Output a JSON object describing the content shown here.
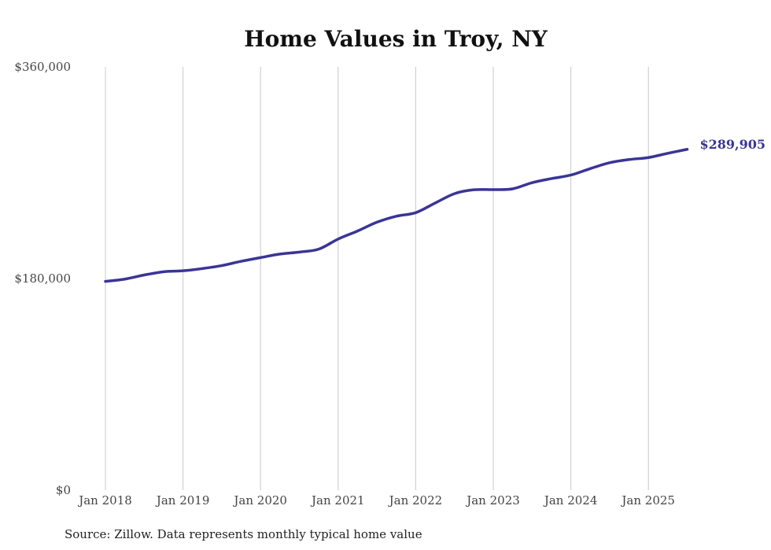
{
  "chart_data": {
    "type": "line",
    "title": "Home Values in Troy, NY",
    "xlabel": "",
    "ylabel": "",
    "source": "Source: Zillow. Data represents monthly typical home value",
    "ylim": [
      0,
      360000
    ],
    "y_ticks": [
      {
        "value": 0,
        "label": "$0"
      },
      {
        "value": 180000,
        "label": "$180,000"
      },
      {
        "value": 360000,
        "label": "$360,000"
      }
    ],
    "x_ticks": [
      {
        "date": "2018-01",
        "label": "Jan 2018"
      },
      {
        "date": "2019-01",
        "label": "Jan 2019"
      },
      {
        "date": "2020-01",
        "label": "Jan 2020"
      },
      {
        "date": "2021-01",
        "label": "Jan 2021"
      },
      {
        "date": "2022-01",
        "label": "Jan 2022"
      },
      {
        "date": "2023-01",
        "label": "Jan 2023"
      },
      {
        "date": "2024-01",
        "label": "Jan 2024"
      },
      {
        "date": "2025-01",
        "label": "Jan 2025"
      }
    ],
    "xlim": [
      "2018-01",
      "2025-07"
    ],
    "grid": {
      "vertical": true,
      "horizontal": false
    },
    "line_color": "#3a3595",
    "grid_color": "#c8c8c8",
    "end_label": "$289,905",
    "series": [
      {
        "x": [
          "2018-01",
          "2018-04",
          "2018-07",
          "2018-10",
          "2019-01",
          "2019-04",
          "2019-07",
          "2019-10",
          "2020-01",
          "2020-04",
          "2020-07",
          "2020-10",
          "2021-01",
          "2021-04",
          "2021-07",
          "2021-10",
          "2022-01",
          "2022-04",
          "2022-07",
          "2022-10",
          "2023-01",
          "2023-04",
          "2023-07",
          "2023-10",
          "2024-01",
          "2024-04",
          "2024-07",
          "2024-10",
          "2025-01",
          "2025-04",
          "2025-07"
        ],
        "y": [
          177600,
          179500,
          183000,
          185800,
          186600,
          188500,
          191000,
          194700,
          197800,
          200800,
          202500,
          205000,
          213600,
          220400,
          227900,
          233000,
          236000,
          244200,
          252200,
          255500,
          255600,
          256300,
          261500,
          265000,
          268000,
          273500,
          278500,
          281200,
          282900,
          286500,
          289905
        ]
      }
    ]
  }
}
